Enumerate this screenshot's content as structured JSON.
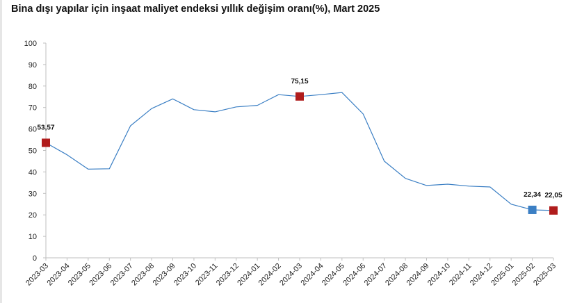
{
  "chart_data": {
    "type": "line",
    "title": "Bina dışı yapılar için inşaat maliyet endeksi yıllık değişim oranı(%), Mart 2025",
    "xlabel": "",
    "ylabel": "",
    "ylim": [
      0,
      100
    ],
    "yticks": [
      0,
      10,
      20,
      30,
      40,
      50,
      60,
      70,
      80,
      90,
      100
    ],
    "grid": false,
    "legend": "none",
    "line_color": "#3b7fc4",
    "categories": [
      "2023-03",
      "2023-04",
      "2023-05",
      "2023-06",
      "2023-07",
      "2023-08",
      "2023-09",
      "2023-10",
      "2023-11",
      "2023-12",
      "2024-01",
      "2024-02",
      "2024-03",
      "2024-04",
      "2024-05",
      "2024-06",
      "2024-07",
      "2024-08",
      "2024-09",
      "2024-10",
      "2024-11",
      "2024-12",
      "2025-01",
      "2025-02",
      "2025-03"
    ],
    "values": [
      53.57,
      48.0,
      41.3,
      41.5,
      61.5,
      69.5,
      74.0,
      69.0,
      68.0,
      70.3,
      71.0,
      76.0,
      75.15,
      76.0,
      77.0,
      67.0,
      45.0,
      37.0,
      33.7,
      34.3,
      33.4,
      33.0,
      25.0,
      22.34,
      22.05
    ],
    "highlights": [
      {
        "category": "2023-03",
        "label": "53,57",
        "color": "#b01c1c"
      },
      {
        "category": "2024-03",
        "label": "75,15",
        "color": "#b01c1c"
      },
      {
        "category": "2025-02",
        "label": "22,34",
        "color": "#3b7fc4"
      },
      {
        "category": "2025-03",
        "label": "22,05",
        "color": "#b01c1c"
      }
    ]
  }
}
